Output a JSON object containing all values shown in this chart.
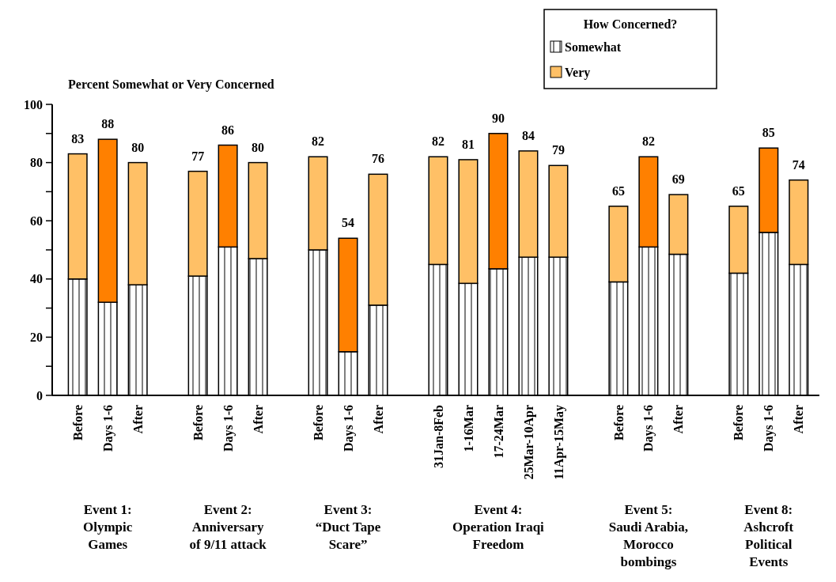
{
  "chart_data": {
    "type": "bar",
    "stacked": true,
    "ylabel": "Percent Somewhat or Very Concerned",
    "legend_title": "How Concerned?",
    "legend": "top right",
    "categories": [
      "Before",
      "Days 1-6",
      "After",
      null,
      "Before",
      "Days 1-6",
      "After",
      null,
      "Before",
      "Days 1-6",
      "After",
      null,
      "31Jan-8Feb",
      "1-16Mar",
      "17-24Mar",
      "25Mar-10Apr",
      "11Apr-15May",
      null,
      "Before",
      "Days 1-6",
      "After",
      null,
      "Before",
      "Days 1-6",
      "After"
    ],
    "series": [
      {
        "name": "Somewhat",
        "color": "#ffffff",
        "values": [
          40,
          32,
          38,
          null,
          41,
          51,
          47,
          null,
          50,
          15,
          31,
          null,
          45,
          38.5,
          43.5,
          47.5,
          47.5,
          null,
          39,
          51,
          48.5,
          null,
          42,
          56,
          45
        ]
      },
      {
        "name": "Very",
        "color": "#ffc066",
        "colors": [
          "#ffc066",
          "#ff8000",
          "#ffc066",
          null,
          "#ffc066",
          "#ff8000",
          "#ffc066",
          null,
          "#ffc066",
          "#ff8000",
          "#ffc066",
          null,
          "#ffc066",
          "#ffc066",
          "#ff8000",
          "#ffc066",
          "#ffc066",
          null,
          "#ffc066",
          "#ff8000",
          "#ffc066",
          null,
          "#ffc066",
          "#ff8000",
          "#ffc066"
        ],
        "values": [
          43,
          56,
          42,
          null,
          36,
          35,
          33,
          null,
          32,
          39,
          45,
          null,
          37,
          42.5,
          46.5,
          36.5,
          31.5,
          null,
          26,
          31,
          20.5,
          null,
          23,
          29,
          29
        ]
      }
    ],
    "totals": [
      "83",
      "88",
      "80",
      null,
      "77",
      "86",
      "80",
      null,
      "82",
      "54",
      "76",
      null,
      "82",
      "81",
      "90",
      "84",
      "79",
      null,
      "65",
      "82",
      "69",
      null,
      "65",
      "85",
      "74"
    ],
    "ylim": [
      0,
      100
    ],
    "yticks": [
      0,
      20,
      40,
      60,
      80,
      100
    ],
    "grid": false,
    "annotations": [
      "Event 1:\nOlympic\nGames",
      "Event 2:\nAnniversary\nof 9/11 attack",
      "Event 3:\n“Duct Tape\nScare”",
      "Event 4:\nOperation Iraqi\nFreedom",
      "Event 5:\nSaudi Arabia,\nMorocco\nbombings",
      "Event 8:\nAshcroft\nPolitical\nEvents"
    ]
  }
}
